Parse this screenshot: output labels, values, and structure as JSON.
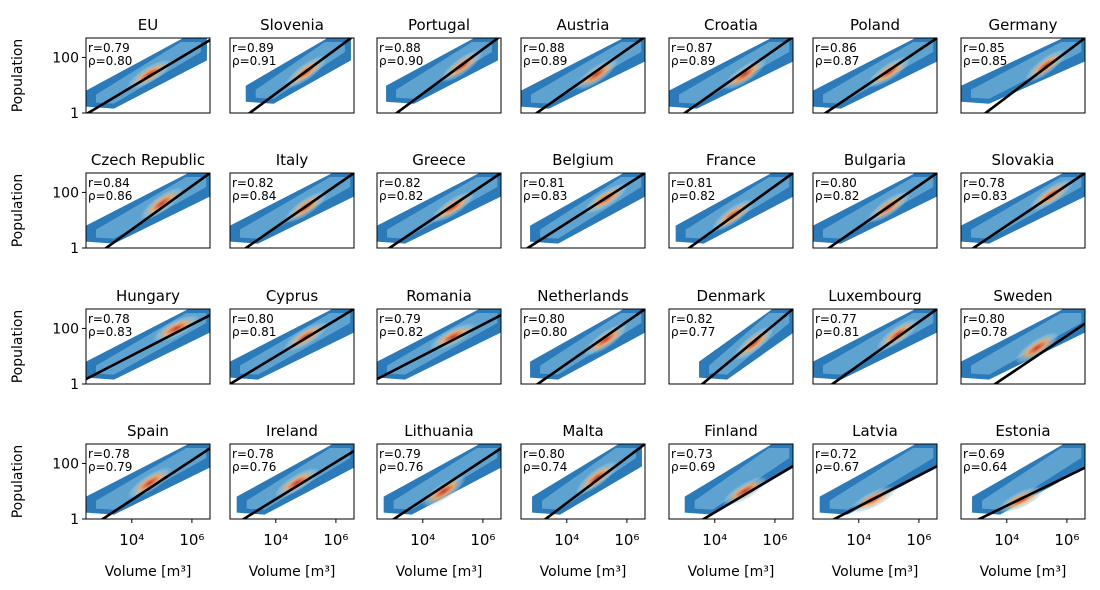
{
  "figure": {
    "ylabel": "Population",
    "xlabel": "Volume [m³]",
    "ytick_labels": [
      "100",
      "1"
    ],
    "xtick_labels": [
      "10⁴",
      "10⁶"
    ]
  },
  "chart_data": {
    "type": "heatmap",
    "description_type": "density panels with fitted line",
    "x_scale": "log",
    "y_scale": "log",
    "xlim": [
      300,
      4000000
    ],
    "ylim": [
      1,
      500
    ],
    "x_ticks": [
      10000,
      1000000
    ],
    "y_ticks": [
      1,
      100
    ],
    "fit_color": "#000000",
    "density_colors": [
      "#2b7bba",
      "#9ecae1",
      "#fdae61",
      "#d73027"
    ],
    "panels": [
      {
        "name": "EU",
        "r": "r=0.79",
        "rho": "ρ=0.80",
        "line": [
          [
            300,
            0.9
          ],
          [
            4000000,
            420
          ]
        ],
        "blob": [
          [
            300,
            2
          ],
          [
            2000000,
            500
          ]
        ],
        "peak": [
          40000,
          25
        ]
      },
      {
        "name": "Slovenia",
        "r": "r=0.89",
        "rho": "ρ=0.91",
        "line": [
          [
            300,
            0.3
          ],
          [
            4000000,
            600
          ]
        ],
        "blob": [
          [
            1000,
            3
          ],
          [
            2000000,
            500
          ]
        ],
        "peak": [
          100000,
          30
        ]
      },
      {
        "name": "Portugal",
        "r": "r=0.88",
        "rho": "ρ=0.90",
        "line": [
          [
            300,
            0.3
          ],
          [
            4000000,
            600
          ]
        ],
        "blob": [
          [
            600,
            3
          ],
          [
            2000000,
            500
          ]
        ],
        "peak": [
          200000,
          50
        ]
      },
      {
        "name": "Austria",
        "r": "r=0.88",
        "rho": "ρ=0.89",
        "line": [
          [
            300,
            0.4
          ],
          [
            4000000,
            550
          ]
        ],
        "blob": [
          [
            300,
            2
          ],
          [
            3000000,
            500
          ]
        ],
        "peak": [
          100000,
          25
        ]
      },
      {
        "name": "Croatia",
        "r": "r=0.87",
        "rho": "ρ=0.89",
        "line": [
          [
            300,
            0.4
          ],
          [
            4000000,
            550
          ]
        ],
        "blob": [
          [
            300,
            2
          ],
          [
            3000000,
            500
          ]
        ],
        "peak": [
          100000,
          25
        ]
      },
      {
        "name": "Poland",
        "r": "r=0.86",
        "rho": "ρ=0.87",
        "line": [
          [
            300,
            0.5
          ],
          [
            4000000,
            500
          ]
        ],
        "blob": [
          [
            300,
            2
          ],
          [
            3000000,
            500
          ]
        ],
        "peak": [
          100000,
          30
        ]
      },
      {
        "name": "Germany",
        "r": "r=0.85",
        "rho": "ρ=0.85",
        "line": [
          [
            1500,
            0.8
          ],
          [
            4000000,
            500
          ]
        ],
        "blob": [
          [
            300,
            3
          ],
          [
            3000000,
            500
          ]
        ],
        "peak": [
          200000,
          50
        ]
      },
      {
        "name": "Czech Republic",
        "r": "r=0.84",
        "rho": "ρ=0.86",
        "line": [
          [
            300,
            0.3
          ],
          [
            4000000,
            500
          ]
        ],
        "blob": [
          [
            300,
            2
          ],
          [
            3000000,
            500
          ]
        ],
        "peak": [
          100000,
          40
        ]
      },
      {
        "name": "Italy",
        "r": "r=0.82",
        "rho": "ρ=0.84",
        "line": [
          [
            300,
            0.4
          ],
          [
            4000000,
            500
          ]
        ],
        "blob": [
          [
            300,
            2
          ],
          [
            3000000,
            500
          ]
        ],
        "peak": [
          100000,
          30
        ]
      },
      {
        "name": "Greece",
        "r": "r=0.82",
        "rho": "ρ=0.82",
        "line": [
          [
            300,
            0.5
          ],
          [
            4000000,
            500
          ]
        ],
        "blob": [
          [
            300,
            2
          ],
          [
            3000000,
            500
          ]
        ],
        "peak": [
          100000,
          30
        ]
      },
      {
        "name": "Belgium",
        "r": "r=0.81",
        "rho": "ρ=0.83",
        "line": [
          [
            300,
            0.7
          ],
          [
            4000000,
            500
          ]
        ],
        "blob": [
          [
            600,
            2
          ],
          [
            3000000,
            500
          ]
        ],
        "peak": [
          200000,
          60
        ]
      },
      {
        "name": "France",
        "r": "r=0.81",
        "rho": "ρ=0.82",
        "line": [
          [
            300,
            0.3
          ],
          [
            4000000,
            500
          ]
        ],
        "blob": [
          [
            500,
            2
          ],
          [
            3000000,
            500
          ]
        ],
        "peak": [
          40000,
          15
        ]
      },
      {
        "name": "Bulgaria",
        "r": "r=0.80",
        "rho": "ρ=0.82",
        "line": [
          [
            300,
            0.4
          ],
          [
            4000000,
            500
          ]
        ],
        "blob": [
          [
            300,
            2
          ],
          [
            3000000,
            500
          ]
        ],
        "peak": [
          100000,
          30
        ]
      },
      {
        "name": "Slovakia",
        "r": "r=0.78",
        "rho": "ρ=0.83",
        "line": [
          [
            300,
            0.5
          ],
          [
            4000000,
            500
          ]
        ],
        "blob": [
          [
            300,
            2
          ],
          [
            3000000,
            500
          ]
        ],
        "peak": [
          300000,
          80
        ]
      },
      {
        "name": "Hungary",
        "r": "r=0.78",
        "rho": "ρ=0.83",
        "line": [
          [
            300,
            1.5
          ],
          [
            4000000,
            300
          ]
        ],
        "blob": [
          [
            300,
            2
          ],
          [
            3000000,
            500
          ]
        ],
        "peak": [
          300000,
          100
        ]
      },
      {
        "name": "Cyprus",
        "r": "r=0.80",
        "rho": "ρ=0.81",
        "line": [
          [
            300,
            1
          ],
          [
            4000000,
            500
          ]
        ],
        "blob": [
          [
            300,
            2
          ],
          [
            3000000,
            500
          ]
        ],
        "peak": [
          100000,
          50
        ]
      },
      {
        "name": "Romania",
        "r": "r=0.79",
        "rho": "ρ=0.82",
        "line": [
          [
            300,
            1.5
          ],
          [
            4000000,
            300
          ]
        ],
        "blob": [
          [
            300,
            2
          ],
          [
            3000000,
            500
          ]
        ],
        "peak": [
          100000,
          50
        ]
      },
      {
        "name": "Netherlands",
        "r": "r=0.80",
        "rho": "ρ=0.80",
        "line": [
          [
            800,
            0.8
          ],
          [
            4000000,
            500
          ]
        ],
        "blob": [
          [
            600,
            2
          ],
          [
            3000000,
            500
          ]
        ],
        "peak": [
          200000,
          40
        ]
      },
      {
        "name": "Denmark",
        "r": "r=0.82",
        "rho": "ρ=0.77",
        "line": [
          [
            3000,
            0.8
          ],
          [
            4000000,
            500
          ]
        ],
        "blob": [
          [
            3000,
            2
          ],
          [
            3000000,
            500
          ]
        ],
        "peak": [
          200000,
          30
        ]
      },
      {
        "name": "Luxembourg",
        "r": "r=0.77",
        "rho": "ρ=0.81",
        "line": [
          [
            1000,
            0.8
          ],
          [
            4000000,
            500
          ]
        ],
        "blob": [
          [
            300,
            2
          ],
          [
            3000000,
            500
          ]
        ],
        "peak": [
          200000,
          60
        ]
      },
      {
        "name": "Sweden",
        "r": "r=0.80",
        "rho": "ρ=0.78",
        "line": [
          [
            3000,
            0.8
          ],
          [
            4000000,
            150
          ]
        ],
        "blob": [
          [
            300,
            2
          ],
          [
            3000000,
            500
          ]
        ],
        "peak": [
          100000,
          20
        ]
      },
      {
        "name": "Spain",
        "r": "r=0.78",
        "rho": "ρ=0.79",
        "line": [
          [
            300,
            0.4
          ],
          [
            4000000,
            350
          ]
        ],
        "blob": [
          [
            300,
            2
          ],
          [
            3000000,
            500
          ]
        ],
        "peak": [
          40000,
          20
        ]
      },
      {
        "name": "Ireland",
        "r": "r=0.78",
        "rho": "ρ=0.76",
        "line": [
          [
            300,
            0.5
          ],
          [
            4000000,
            280
          ]
        ],
        "blob": [
          [
            500,
            2
          ],
          [
            3000000,
            500
          ]
        ],
        "peak": [
          50000,
          20
        ]
      },
      {
        "name": "Lithuania",
        "r": "r=0.79",
        "rho": "ρ=0.76",
        "line": [
          [
            800,
            0.8
          ],
          [
            4000000,
            350
          ]
        ],
        "blob": [
          [
            500,
            2
          ],
          [
            3000000,
            500
          ]
        ],
        "peak": [
          50000,
          10
        ]
      },
      {
        "name": "Malta",
        "r": "r=0.80",
        "rho": "ρ=0.74",
        "line": [
          [
            1500,
            0.8
          ],
          [
            4000000,
            500
          ]
        ],
        "blob": [
          [
            700,
            2
          ],
          [
            2000000,
            500
          ]
        ],
        "peak": [
          100000,
          30
        ]
      },
      {
        "name": "Finland",
        "r": "r=0.73",
        "rho": "ρ=0.69",
        "line": [
          [
            3000,
            0.8
          ],
          [
            4000000,
            80
          ]
        ],
        "blob": [
          [
            1000,
            2
          ],
          [
            3000000,
            500
          ]
        ],
        "peak": [
          100000,
          10
        ]
      },
      {
        "name": "Latvia",
        "r": "r=0.72",
        "rho": "ρ=0.67",
        "line": [
          [
            300,
            0.4
          ],
          [
            4000000,
            80
          ]
        ],
        "blob": [
          [
            500,
            2
          ],
          [
            3000000,
            500
          ]
        ],
        "peak": [
          30000,
          5
        ]
      },
      {
        "name": "Estonia",
        "r": "r=0.69",
        "rho": "ρ=0.64",
        "line": [
          [
            800,
            0.8
          ],
          [
            4000000,
            70
          ]
        ],
        "blob": [
          [
            700,
            2
          ],
          [
            3000000,
            500
          ]
        ],
        "peak": [
          30000,
          5
        ]
      }
    ]
  }
}
